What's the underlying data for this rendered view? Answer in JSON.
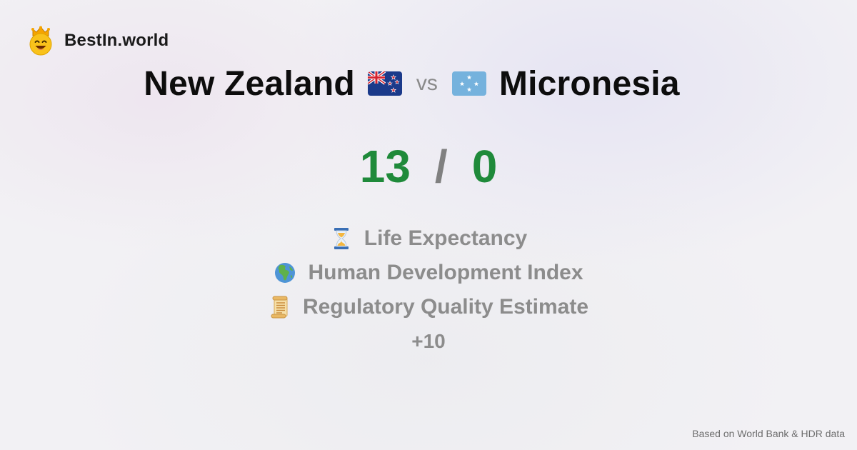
{
  "brand": {
    "name": "BestIn.world",
    "logo_icon": "smiling-crowned-face-icon"
  },
  "comparison": {
    "left_country": "New Zealand",
    "left_flag_icon": "new-zealand-flag-icon",
    "vs_label": "vs",
    "right_country": "Micronesia",
    "right_flag_icon": "micronesia-flag-icon"
  },
  "score": {
    "left": "13",
    "separator": "/",
    "right": "0",
    "color": "#1f8a3a"
  },
  "metrics": [
    {
      "icon": "hourglass-icon",
      "label": "Life Expectancy"
    },
    {
      "icon": "globe-africa-europe-icon",
      "label": "Human Development Index"
    },
    {
      "icon": "scroll-icon",
      "label": "Regulatory Quality Estimate"
    }
  ],
  "more_label": "+10",
  "footer": {
    "note": "Based on World Bank & HDR data"
  }
}
